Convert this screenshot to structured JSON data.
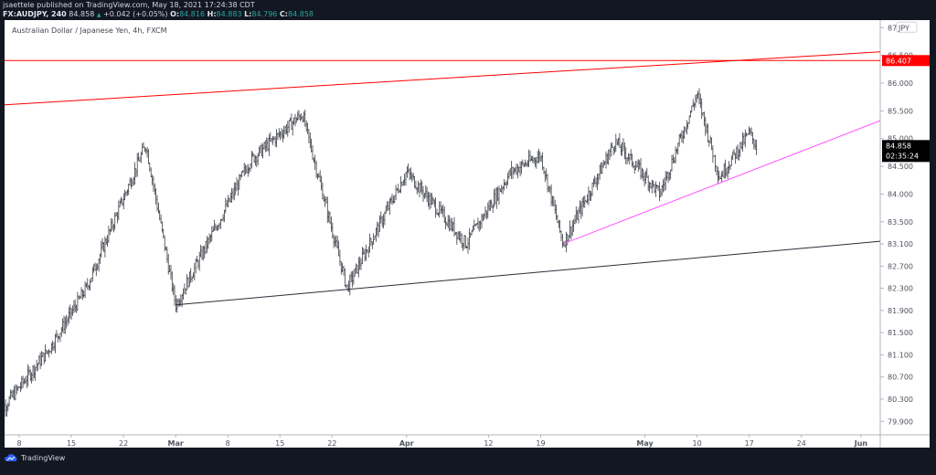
{
  "header": {
    "publisher_line": "jsaettele published on TradingView.com, May 18, 2021 17:24:38 CDT",
    "symbol": "FX:AUDJPY, 240",
    "last": "84.858",
    "change": "+0.042 (+0.05%)",
    "ohlc": {
      "o_label": "O:",
      "o": "84.816",
      "h_label": "H:",
      "h": "84.883",
      "l_label": "L:",
      "l": "84.796",
      "c_label": "C:",
      "c": "84.858"
    },
    "up_arrow": "▲"
  },
  "chart_title": "Australian Dollar / Japanese Yen, 4h, FXCM",
  "price_axis": {
    "currency": "JPY",
    "ticks": [
      "87",
      "86.500",
      "86.000",
      "85.500",
      "85.000",
      "84.500",
      "84.000",
      "83.500",
      "83.100",
      "82.700",
      "82.300",
      "81.900",
      "81.500",
      "81.100",
      "80.700",
      "80.300",
      "79.900"
    ],
    "red_label": "86.407",
    "last_price_label": "84.858",
    "countdown": "02:35:24"
  },
  "time_axis": {
    "ticks": [
      "8",
      "15",
      "22",
      "Mar",
      "8",
      "15",
      "22",
      "Apr",
      "12",
      "19",
      "May",
      "10",
      "17",
      "24",
      "Jun"
    ]
  },
  "footer": {
    "brand": "TradingView"
  },
  "colors": {
    "red": "#ff0000",
    "magenta": "#ff55ff",
    "black_line": "#2a2e39",
    "bars": "#3a3d46",
    "header_bg": "#131722",
    "green": "#26a69a"
  },
  "chart_data": {
    "type": "ohlc-bar",
    "title": "Australian Dollar / Japanese Yen, 4h, FXCM",
    "symbol": "FX:AUDJPY",
    "interval": "240",
    "xlabel": "",
    "ylabel": "JPY",
    "ylim": [
      79.7,
      87.1
    ],
    "x_range": [
      "Feb 5, 2021",
      "Jun 3, 2021"
    ],
    "last_price": 84.858,
    "ohlc_last": {
      "open": 84.816,
      "high": 84.883,
      "low": 84.796,
      "close": 84.858
    },
    "swing_points": [
      {
        "date": "Feb 5",
        "price": 80.0
      },
      {
        "date": "Feb 12",
        "price": 81.2
      },
      {
        "date": "Feb 17",
        "price": 82.3
      },
      {
        "date": "Feb 25",
        "price": 84.9
      },
      {
        "date": "Mar 1",
        "price": 82.0
      },
      {
        "date": "Mar 11",
        "price": 84.6
      },
      {
        "date": "Mar 18",
        "price": 85.45
      },
      {
        "date": "Mar 24",
        "price": 82.3
      },
      {
        "date": "Apr 1",
        "price": 84.4
      },
      {
        "date": "Apr 9",
        "price": 83.1
      },
      {
        "date": "Apr 15",
        "price": 84.4
      },
      {
        "date": "Apr 19",
        "price": 84.7
      },
      {
        "date": "Apr 22",
        "price": 83.1
      },
      {
        "date": "Apr 29",
        "price": 84.95
      },
      {
        "date": "May 5",
        "price": 84.0
      },
      {
        "date": "May 10",
        "price": 85.8
      },
      {
        "date": "May 13",
        "price": 84.3
      },
      {
        "date": "May 17",
        "price": 85.1
      },
      {
        "date": "May 18",
        "price": 84.858
      }
    ],
    "annotations": [
      {
        "type": "horizontal_line",
        "color": "#ff0000",
        "price": 86.407
      },
      {
        "type": "trendline",
        "color": "#ff0000",
        "from": {
          "date": "Feb 5",
          "price": 85.6
        },
        "to": {
          "date": "Jun 3",
          "price": 86.6
        }
      },
      {
        "type": "trendline",
        "color": "#2a2e39",
        "from": {
          "date": "Mar 1",
          "price": 82.0
        },
        "to": {
          "date": "Jun 3",
          "price": 83.2
        }
      },
      {
        "type": "trendline",
        "color": "#ff55ff",
        "from": {
          "date": "Apr 22",
          "price": 83.1
        },
        "to": {
          "date": "Jun 3",
          "price": 85.55
        }
      }
    ],
    "grid": false,
    "legend": null
  }
}
